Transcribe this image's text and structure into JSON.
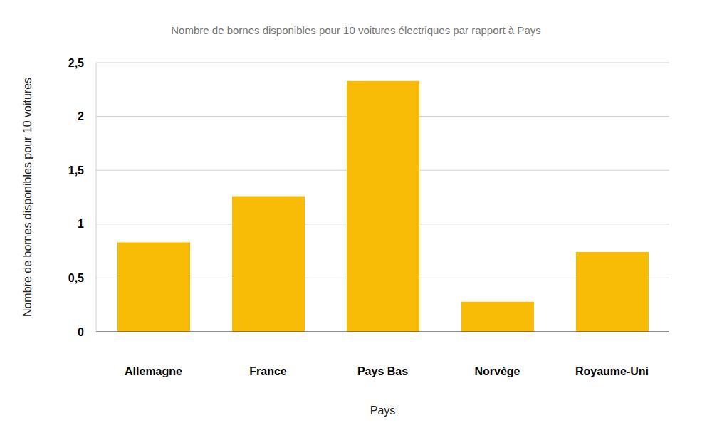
{
  "chart_data": {
    "type": "bar",
    "title": "Nombre de bornes disponibles pour 10 voitures électriques par rapport à Pays",
    "x_label": "Pays",
    "y_label": "Nombre de bornes disponibles pour 10 voitures",
    "categories": [
      "Allemagne",
      "France",
      "Pays Bas",
      "Norvège",
      "Royaume-Uni"
    ],
    "values": [
      0.83,
      1.26,
      2.33,
      0.28,
      0.74
    ],
    "color": "#f9bc06",
    "ylim": [
      0,
      2.5
    ],
    "yticks": [
      0,
      {
        "value": 0.5,
        "label": "0,5"
      },
      1,
      {
        "value": 1.5,
        "label": "1,5"
      },
      2,
      {
        "value": 2.5,
        "label": "2,5"
      }
    ],
    "grid": true
  }
}
